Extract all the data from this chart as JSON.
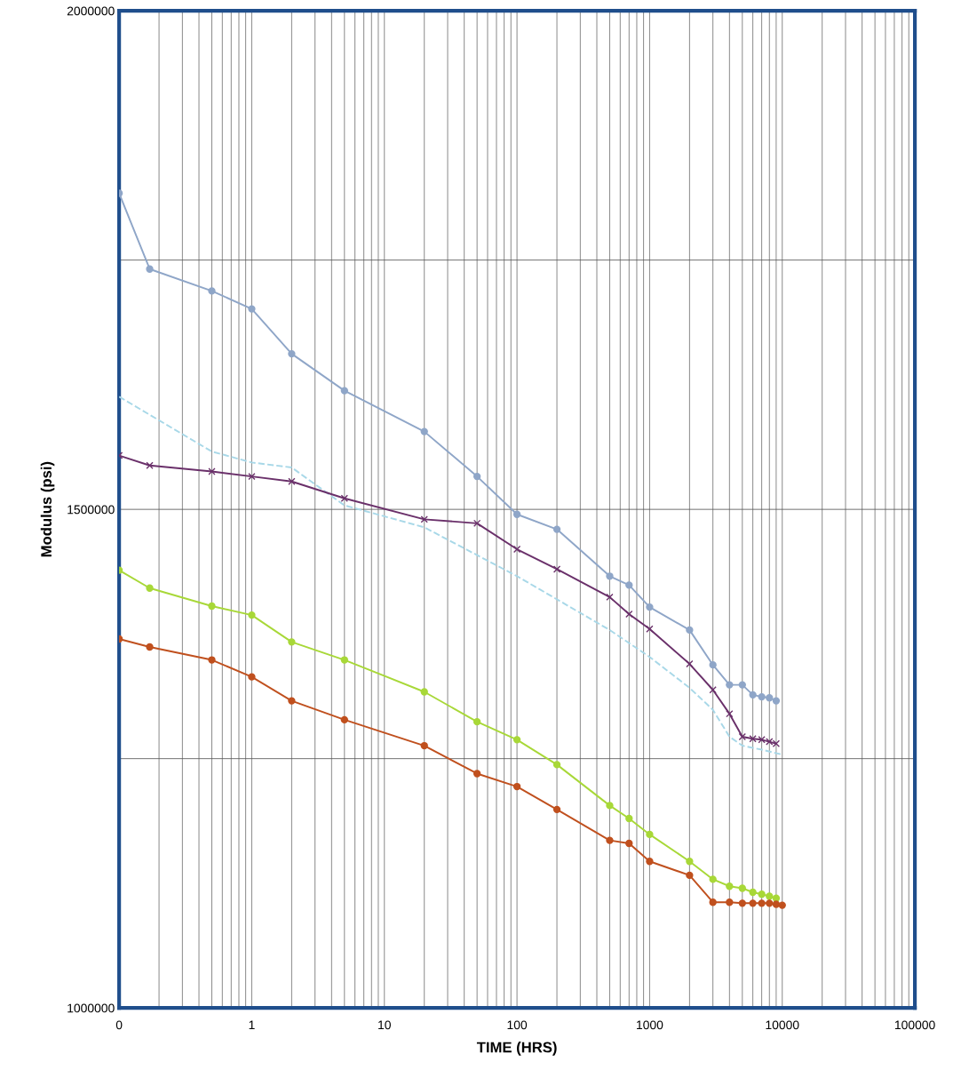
{
  "chart_data": {
    "type": "line",
    "xlabel": "TIME (HRS)",
    "ylabel": "Modulus (psi)",
    "log": "x",
    "grid": true,
    "legend": false,
    "xlim": [
      0.1,
      100000
    ],
    "xticks": [
      {
        "value": 0.1,
        "label": "0"
      },
      1,
      10,
      100,
      1000,
      10000,
      100000
    ],
    "ylim": [
      1000000,
      2000000
    ],
    "yticks": [
      1000000,
      {
        "value": 1250000,
        "label": null
      },
      1500000,
      {
        "value": 1750000,
        "label": null
      },
      2000000
    ],
    "series": [
      {
        "color": "#8fa6c8",
        "marker": "circle",
        "line_style": "solid",
        "x": [
          0.1,
          0.17,
          0.5,
          1,
          2,
          5,
          20,
          50,
          100,
          200,
          500,
          700,
          1000,
          2000,
          3000,
          4000,
          5000,
          6000,
          7000,
          8000,
          9000
        ],
        "values": [
          1817000,
          1741000,
          1719000,
          1701000,
          1656000,
          1619000,
          1578000,
          1533000,
          1495000,
          1480000,
          1433000,
          1424000,
          1402000,
          1379000,
          1344000,
          1324000,
          1324000,
          1314000,
          1312000,
          1311000,
          1308000
        ]
      },
      {
        "color": "#a8d8e8",
        "marker": "none",
        "line_style": "dashed",
        "x": [
          0.1,
          0.5,
          1,
          2,
          5,
          20,
          100,
          500,
          1000,
          2000,
          3000,
          4000,
          5000,
          7000,
          10000
        ],
        "values": [
          1613000,
          1558000,
          1547000,
          1542000,
          1504000,
          1482000,
          1433000,
          1379000,
          1352000,
          1321000,
          1299000,
          1272000,
          1263000,
          1259000,
          1254000
        ]
      },
      {
        "color": "#6a306a",
        "marker": "cross",
        "line_style": "solid",
        "x": [
          0.1,
          0.17,
          0.5,
          1,
          2,
          5,
          20,
          50,
          100,
          200,
          500,
          700,
          1000,
          2000,
          3000,
          4000,
          5000,
          6000,
          7000,
          8000,
          9000
        ],
        "values": [
          1554000,
          1544000,
          1538000,
          1533000,
          1528000,
          1511000,
          1490000,
          1486000,
          1460000,
          1440000,
          1412000,
          1395000,
          1380000,
          1345000,
          1319000,
          1295000,
          1272000,
          1270000,
          1269000,
          1267000,
          1265000
        ]
      },
      {
        "color": "#a8d838",
        "marker": "circle",
        "line_style": "solid",
        "x": [
          0.1,
          0.17,
          0.5,
          1,
          2,
          5,
          20,
          50,
          100,
          200,
          500,
          700,
          1000,
          2000,
          3000,
          4000,
          5000,
          6000,
          7000,
          8000,
          9000
        ],
        "values": [
          1439000,
          1421000,
          1403000,
          1394000,
          1367000,
          1349000,
          1317000,
          1287000,
          1269000,
          1244000,
          1203000,
          1190000,
          1174000,
          1147000,
          1129000,
          1122000,
          1120000,
          1116000,
          1114000,
          1112000,
          1110000
        ]
      },
      {
        "color": "#c0501e",
        "marker": "circle",
        "line_style": "solid",
        "x": [
          0.1,
          0.17,
          0.5,
          1,
          2,
          5,
          20,
          50,
          100,
          200,
          500,
          700,
          1000,
          2000,
          3000,
          4000,
          5000,
          6000,
          7000,
          8000,
          9000,
          10000
        ],
        "values": [
          1370000,
          1362000,
          1349000,
          1332000,
          1308000,
          1289000,
          1263000,
          1235000,
          1222000,
          1199000,
          1168000,
          1165000,
          1147000,
          1133000,
          1106000,
          1106000,
          1105000,
          1105000,
          1105000,
          1105000,
          1104000,
          1103000
        ]
      }
    ]
  }
}
